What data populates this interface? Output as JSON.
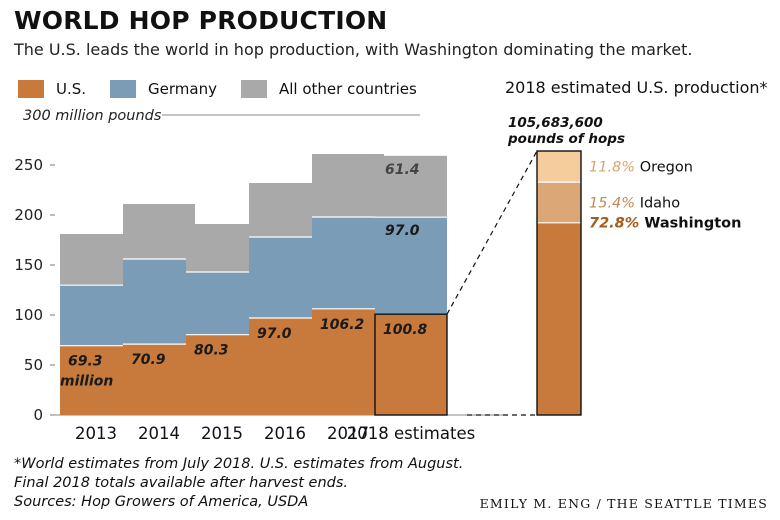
{
  "title": "WORLD HOP PRODUCTION",
  "subtitle": "The U.S. leads the world in hop production, with Washington dominating the market.",
  "legend": [
    {
      "name": "U.S.",
      "color": "#c87a3c"
    },
    {
      "name": "Germany",
      "color": "#7a9cb6"
    },
    {
      "name": "All other countries",
      "color": "#a9a9a9"
    }
  ],
  "footnote_1": "*World estimates from July 2018. U.S. estimates from August.",
  "footnote_2": "Final 2018 totals available after harvest ends.",
  "sources": "Sources: Hop Growers of America, USDA",
  "credit": "EMILY M. ENG / THE SEATTLE TIMES",
  "chart_data": [
    {
      "type": "bar",
      "stacked": true,
      "y_unit_label": "300 million pounds",
      "categories": [
        "2013",
        "2014",
        "2015",
        "2016",
        "2017",
        "2018 estimates"
      ],
      "yticks": [
        0,
        50,
        100,
        150,
        200,
        250
      ],
      "ylim": [
        0,
        300
      ],
      "grid": false,
      "series": [
        {
          "name": "U.S.",
          "color": "#c87a3c",
          "values": [
            69.3,
            70.9,
            80.3,
            97.0,
            106.2,
            100.8
          ]
        },
        {
          "name": "Germany",
          "color": "#7a9cb6",
          "values": [
            60.5,
            85.1,
            62.7,
            81.0,
            91.8,
            97.0
          ]
        },
        {
          "name": "All other countries",
          "color": "#a9a9a9",
          "values": [
            51.2,
            55.0,
            48.0,
            54.0,
            63.0,
            61.4
          ]
        }
      ],
      "data_labels": {
        "us": [
          "69.3",
          "70.9",
          "80.3",
          "97.0",
          "106.2",
          "100.8"
        ],
        "us_first_unit": "million",
        "germany_last": "97.0",
        "other_last": "61.4"
      }
    },
    {
      "type": "bar",
      "stacked": true,
      "title": "2018 estimated U.S. production*",
      "total_label_1": "105,683,600",
      "total_label_2": "pounds of hops",
      "categories": [
        "2018"
      ],
      "series": [
        {
          "name": "Washington",
          "percent": 72.8,
          "label": "72.8%",
          "color": "#c87a3c"
        },
        {
          "name": "Idaho",
          "percent": 15.4,
          "label": "15.4%",
          "color": "#dba777"
        },
        {
          "name": "Oregon",
          "percent": 11.8,
          "label": "11.8%",
          "color": "#f5cc9c"
        }
      ]
    }
  ]
}
